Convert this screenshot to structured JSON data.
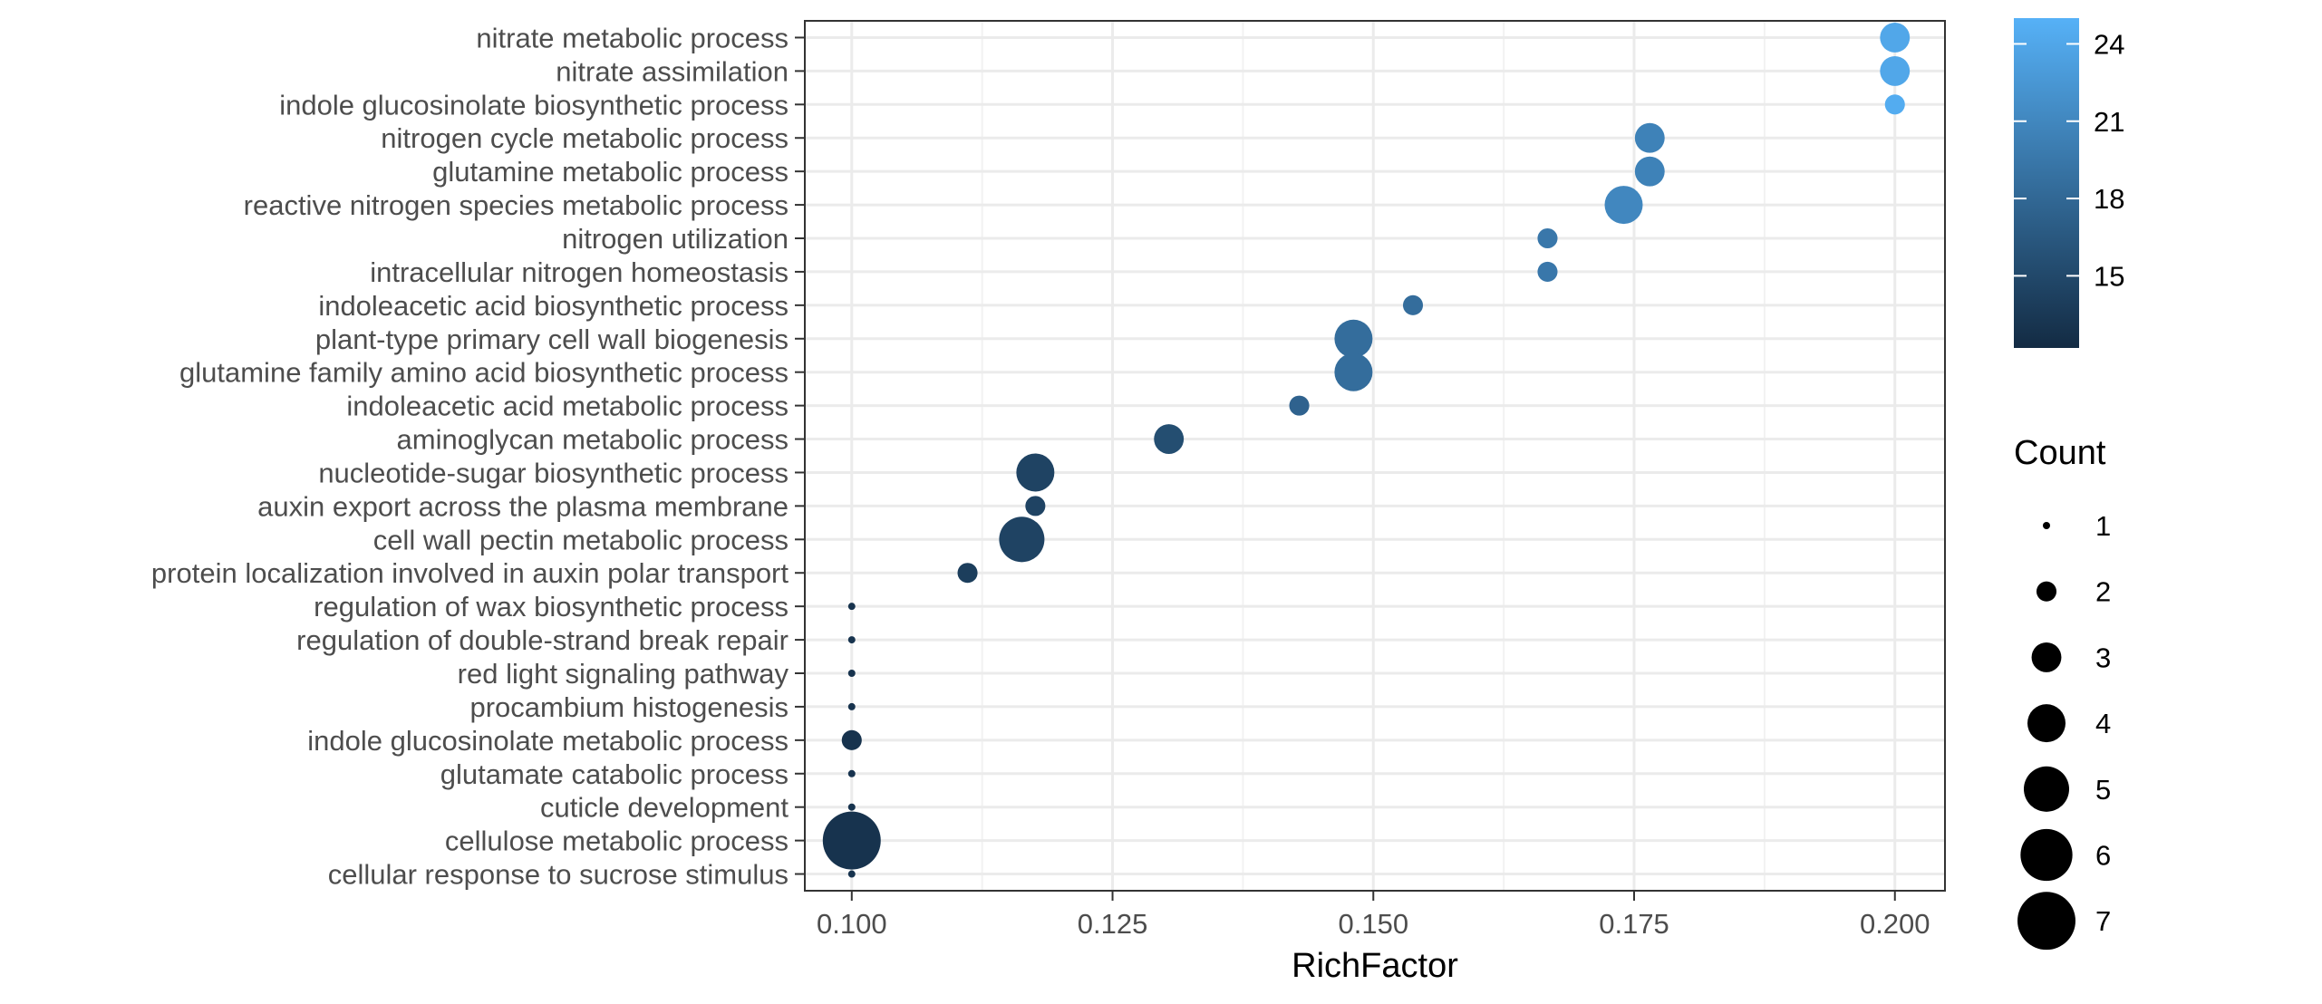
{
  "chart_data": {
    "type": "scatter",
    "title": "",
    "xlabel": "RichFactor",
    "ylabel": "",
    "xlim": [
      0.0955,
      0.2048
    ],
    "x_ticks": [
      "0.100",
      "0.125",
      "0.150",
      "0.175",
      "0.200"
    ],
    "x_tick_values": [
      0.1,
      0.125,
      0.15,
      0.175,
      0.2
    ],
    "grid": true,
    "categories": [
      "nitrate metabolic process",
      "nitrate assimilation",
      "indole glucosinolate biosynthetic process",
      "nitrogen cycle metabolic process",
      "glutamine metabolic process",
      "reactive nitrogen species metabolic process",
      "nitrogen utilization",
      "intracellular nitrogen homeostasis",
      "indoleacetic acid biosynthetic process",
      "plant-type primary cell wall biogenesis",
      "glutamine family amino acid biosynthetic process",
      "indoleacetic acid metabolic process",
      "aminoglycan metabolic process",
      "nucleotide-sugar biosynthetic process",
      "auxin export across the plasma membrane",
      "cell wall pectin metabolic process",
      "protein localization involved in auxin polar transport",
      "regulation of wax biosynthetic process",
      "regulation of double-strand break repair",
      "red light signaling pathway",
      "procambium histogenesis",
      "indole glucosinolate metabolic process",
      "glutamate catabolic process",
      "cuticle development",
      "cellulose metabolic process",
      "cellular response to sucrose stimulus"
    ],
    "points": [
      {
        "term": "nitrate metabolic process",
        "rich_factor": 0.2,
        "count": 3,
        "color_value": 24
      },
      {
        "term": "nitrate assimilation",
        "rich_factor": 0.2,
        "count": 3,
        "color_value": 24
      },
      {
        "term": "indole glucosinolate biosynthetic process",
        "rich_factor": 0.2,
        "count": 2,
        "color_value": 24.5
      },
      {
        "term": "nitrogen cycle metabolic process",
        "rich_factor": 0.1765,
        "count": 3,
        "color_value": 20.5
      },
      {
        "term": "glutamine metabolic process",
        "rich_factor": 0.1765,
        "count": 3,
        "color_value": 20.5
      },
      {
        "term": "reactive nitrogen species metabolic process",
        "rich_factor": 0.174,
        "count": 4,
        "color_value": 21
      },
      {
        "term": "nitrogen utilization",
        "rich_factor": 0.1667,
        "count": 2,
        "color_value": 19.5
      },
      {
        "term": "intracellular nitrogen homeostasis",
        "rich_factor": 0.1667,
        "count": 2,
        "color_value": 19.5
      },
      {
        "term": "indoleacetic acid biosynthetic process",
        "rich_factor": 0.1538,
        "count": 2,
        "color_value": 18.5
      },
      {
        "term": "plant-type primary cell wall biogenesis",
        "rich_factor": 0.1481,
        "count": 4,
        "color_value": 18.5
      },
      {
        "term": "glutamine family amino acid biosynthetic process",
        "rich_factor": 0.1481,
        "count": 4,
        "color_value": 18.5
      },
      {
        "term": "indoleacetic acid metabolic process",
        "rich_factor": 0.1429,
        "count": 2,
        "color_value": 17.5
      },
      {
        "term": "aminoglycan metabolic process",
        "rich_factor": 0.1304,
        "count": 3,
        "color_value": 15.5
      },
      {
        "term": "nucleotide-sugar biosynthetic process",
        "rich_factor": 0.1176,
        "count": 4,
        "color_value": 14.5
      },
      {
        "term": "auxin export across the plasma membrane",
        "rich_factor": 0.1176,
        "count": 2,
        "color_value": 14.5
      },
      {
        "term": "cell wall pectin metabolic process",
        "rich_factor": 0.1163,
        "count": 5,
        "color_value": 14.5
      },
      {
        "term": "protein localization involved in auxin polar transport",
        "rich_factor": 0.1111,
        "count": 2,
        "color_value": 14
      },
      {
        "term": "regulation of wax biosynthetic process",
        "rich_factor": 0.1,
        "count": 1,
        "color_value": 13
      },
      {
        "term": "regulation of double-strand break repair",
        "rich_factor": 0.1,
        "count": 1,
        "color_value": 13
      },
      {
        "term": "red light signaling pathway",
        "rich_factor": 0.1,
        "count": 1,
        "color_value": 13
      },
      {
        "term": "procambium histogenesis",
        "rich_factor": 0.1,
        "count": 1,
        "color_value": 13
      },
      {
        "term": "indole glucosinolate metabolic process",
        "rich_factor": 0.1,
        "count": 2,
        "color_value": 13
      },
      {
        "term": "glutamate catabolic process",
        "rich_factor": 0.1,
        "count": 1,
        "color_value": 13
      },
      {
        "term": "cuticle development",
        "rich_factor": 0.1,
        "count": 1,
        "color_value": 13
      },
      {
        "term": "cellulose metabolic process",
        "rich_factor": 0.1,
        "count": 7,
        "color_value": 13
      },
      {
        "term": "cellular response to sucrose stimulus",
        "rich_factor": 0.1,
        "count": 1,
        "color_value": 13
      }
    ],
    "color_legend": {
      "title": "",
      "range": [
        12.2,
        25
      ],
      "ticks": [
        15,
        18,
        21,
        24
      ],
      "tick_labels": [
        "15",
        "18",
        "21",
        "24"
      ],
      "low_color": "#132B43",
      "high_color": "#56B1F7",
      "placement": "top-right"
    },
    "size_legend": {
      "title": "Count",
      "values": [
        1,
        2,
        3,
        4,
        5,
        6,
        7
      ],
      "labels": [
        "1",
        "2",
        "3",
        "4",
        "5",
        "6",
        "7"
      ],
      "placement": "right"
    }
  }
}
